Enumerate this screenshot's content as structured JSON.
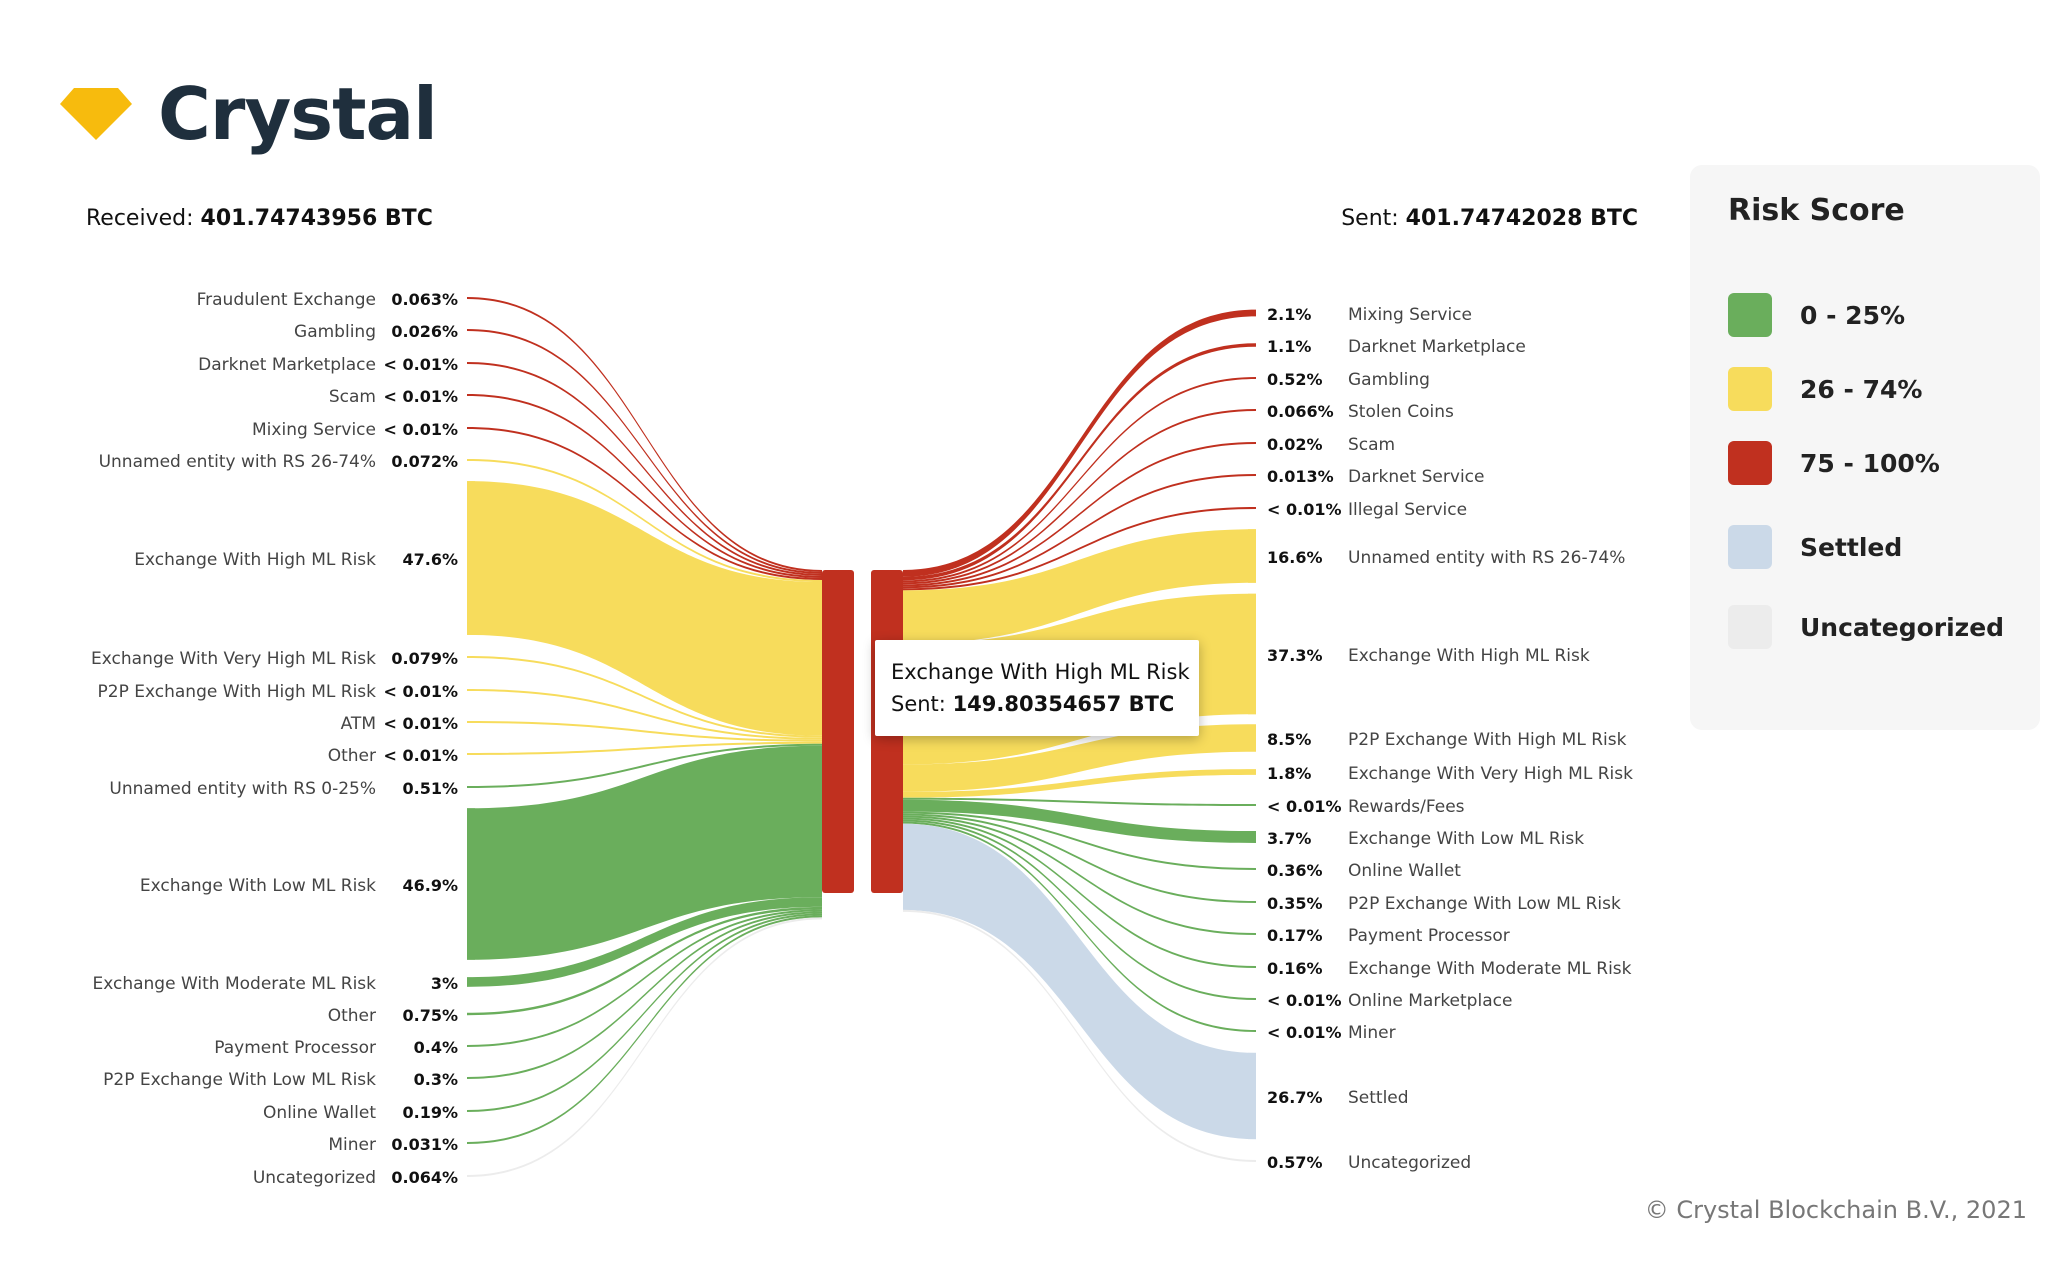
{
  "brand": {
    "name": "Crystal",
    "logo_icon": "diamond-icon",
    "logo_color": "#f7bb0d"
  },
  "totals": {
    "received_label": "Received:",
    "received_value": "401.74743956 BTC",
    "sent_label": "Sent:",
    "sent_value": "401.74742028 BTC"
  },
  "legend": {
    "title": "Risk Score",
    "items": [
      {
        "label": "0 - 25%",
        "color": "#6aae5c"
      },
      {
        "label": "26 - 74%",
        "color": "#f7dc5c"
      },
      {
        "label": "75 - 100%",
        "color": "#c0301f"
      },
      {
        "label": "Settled",
        "color": "#cbd9e8"
      },
      {
        "label": "Uncategorized",
        "color": "#ececec"
      }
    ]
  },
  "tooltip": {
    "line1": "Exchange With High ML Risk",
    "line2_label": "Sent:",
    "line2_value": "149.80354657 BTC"
  },
  "footer": {
    "copyright": "© Crystal Blockchain B.V., 2021"
  },
  "chart_data": {
    "type": "sankey",
    "title": "",
    "node_color": "#c0301f",
    "left_nodes": [
      {
        "label": "Fraudulent Exchange",
        "pct": "0.063%",
        "value": 0.063,
        "risk": "high"
      },
      {
        "label": "Gambling",
        "pct": "0.026%",
        "value": 0.026,
        "risk": "high"
      },
      {
        "label": "Darknet Marketplace",
        "pct": "< 0.01%",
        "value": 0.005,
        "risk": "high"
      },
      {
        "label": "Scam",
        "pct": "< 0.01%",
        "value": 0.005,
        "risk": "high"
      },
      {
        "label": "Mixing Service",
        "pct": "< 0.01%",
        "value": 0.005,
        "risk": "high"
      },
      {
        "label": "Unnamed entity with RS 26-74%",
        "pct": "0.072%",
        "value": 0.072,
        "risk": "medium"
      },
      {
        "label": "Exchange With High ML Risk",
        "pct": "47.6%",
        "value": 47.6,
        "risk": "medium"
      },
      {
        "label": "Exchange With Very High ML Risk",
        "pct": "0.079%",
        "value": 0.079,
        "risk": "medium"
      },
      {
        "label": "P2P Exchange With High ML Risk",
        "pct": "< 0.01%",
        "value": 0.005,
        "risk": "medium"
      },
      {
        "label": "ATM",
        "pct": "< 0.01%",
        "value": 0.005,
        "risk": "medium"
      },
      {
        "label": "Other",
        "pct": "< 0.01%",
        "value": 0.005,
        "risk": "medium"
      },
      {
        "label": "Unnamed entity with RS 0-25%",
        "pct": "0.51%",
        "value": 0.51,
        "risk": "low"
      },
      {
        "label": "Exchange With Low ML Risk",
        "pct": "46.9%",
        "value": 46.9,
        "risk": "low"
      },
      {
        "label": "Exchange With Moderate ML Risk",
        "pct": "3%",
        "value": 3,
        "risk": "low"
      },
      {
        "label": "Other",
        "pct": "0.75%",
        "value": 0.75,
        "risk": "low"
      },
      {
        "label": "Payment Processor",
        "pct": "0.4%",
        "value": 0.4,
        "risk": "low"
      },
      {
        "label": "P2P Exchange With Low ML Risk",
        "pct": "0.3%",
        "value": 0.3,
        "risk": "low"
      },
      {
        "label": "Online Wallet",
        "pct": "0.19%",
        "value": 0.19,
        "risk": "low"
      },
      {
        "label": "Miner",
        "pct": "0.031%",
        "value": 0.031,
        "risk": "low"
      },
      {
        "label": "Uncategorized",
        "pct": "0.064%",
        "value": 0.064,
        "risk": "uncategorized"
      }
    ],
    "right_nodes": [
      {
        "label": "Mixing Service",
        "pct": "2.1%",
        "value": 2.1,
        "risk": "high"
      },
      {
        "label": "Darknet Marketplace",
        "pct": "1.1%",
        "value": 1.1,
        "risk": "high"
      },
      {
        "label": "Gambling",
        "pct": "0.52%",
        "value": 0.52,
        "risk": "high"
      },
      {
        "label": "Stolen Coins",
        "pct": "0.066%",
        "value": 0.066,
        "risk": "high"
      },
      {
        "label": "Scam",
        "pct": "0.02%",
        "value": 0.02,
        "risk": "high"
      },
      {
        "label": "Darknet Service",
        "pct": "0.013%",
        "value": 0.013,
        "risk": "high"
      },
      {
        "label": "Illegal Service",
        "pct": "< 0.01%",
        "value": 0.005,
        "risk": "high"
      },
      {
        "label": "Unnamed entity with RS 26-74%",
        "pct": "16.6%",
        "value": 16.6,
        "risk": "medium"
      },
      {
        "label": "Exchange With High ML Risk",
        "pct": "37.3%",
        "value": 37.3,
        "risk": "medium"
      },
      {
        "label": "P2P Exchange With High ML Risk",
        "pct": "8.5%",
        "value": 8.5,
        "risk": "medium"
      },
      {
        "label": "Exchange With Very High ML Risk",
        "pct": "1.8%",
        "value": 1.8,
        "risk": "medium"
      },
      {
        "label": "Rewards/Fees",
        "pct": "< 0.01%",
        "value": 0.005,
        "risk": "low"
      },
      {
        "label": "Exchange With Low ML Risk",
        "pct": "3.7%",
        "value": 3.7,
        "risk": "low"
      },
      {
        "label": "Online Wallet",
        "pct": "0.36%",
        "value": 0.36,
        "risk": "low"
      },
      {
        "label": "P2P Exchange With Low ML Risk",
        "pct": "0.35%",
        "value": 0.35,
        "risk": "low"
      },
      {
        "label": "Payment Processor",
        "pct": "0.17%",
        "value": 0.17,
        "risk": "low"
      },
      {
        "label": "Exchange With Moderate ML Risk",
        "pct": "0.16%",
        "value": 0.16,
        "risk": "low"
      },
      {
        "label": "Online Marketplace",
        "pct": "< 0.01%",
        "value": 0.005,
        "risk": "low"
      },
      {
        "label": "Miner",
        "pct": "< 0.01%",
        "value": 0.005,
        "risk": "low"
      },
      {
        "label": "Settled",
        "pct": "26.7%",
        "value": 26.7,
        "risk": "settled"
      },
      {
        "label": "Uncategorized",
        "pct": "0.57%",
        "value": 0.57,
        "risk": "uncategorized"
      }
    ],
    "risk_colors": {
      "high": "#c0301f",
      "medium": "#f7dc5c",
      "low": "#6aae5c",
      "settled": "#cbd9e8",
      "uncategorized": "#ececec"
    }
  }
}
